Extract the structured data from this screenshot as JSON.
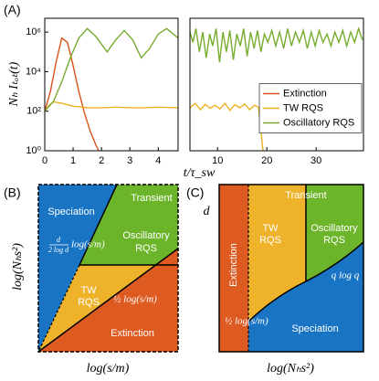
{
  "chart_data": [
    {
      "type": "line",
      "panel_label": "(A)",
      "y_label": "Nₕ Iₜₒₜ(t)",
      "x_label": "t/τ_sw",
      "log_y": true,
      "xlim": [
        0,
        4.7
      ],
      "xticks": [
        0,
        1,
        2,
        3,
        4
      ],
      "ylim": [
        1,
        5000000
      ],
      "yticks": [
        {
          "value": 1,
          "label": "10⁰"
        },
        {
          "value": 100,
          "label": "10²"
        },
        {
          "value": 10000,
          "label": "10⁴"
        },
        {
          "value": 1000000,
          "label": "10⁶"
        }
      ],
      "series": [
        {
          "color": "#d95319",
          "x": [
            0,
            0.2,
            0.4,
            0.6,
            0.8,
            1.0,
            1.2,
            1.4,
            1.6,
            1.8,
            1.9
          ],
          "values": [
            100,
            1000,
            30000,
            500000,
            300000,
            20000,
            1000,
            80,
            10,
            2,
            1
          ]
        },
        {
          "color": "#edb120",
          "x": [
            0,
            0.15,
            0.3,
            0.6,
            1.0,
            1.5,
            2.0,
            2.5,
            3.0,
            3.5,
            4.0,
            4.7
          ],
          "values": [
            100,
            200,
            300,
            250,
            180,
            150,
            150,
            160,
            150,
            150,
            160,
            150
          ]
        },
        {
          "color": "#77ac30",
          "x": [
            0,
            0.3,
            0.6,
            0.9,
            1.2,
            1.5,
            1.8,
            2.2,
            2.5,
            2.8,
            3.1,
            3.4,
            3.7,
            4.0,
            4.3,
            4.7
          ],
          "values": [
            100,
            300,
            3000,
            50000,
            500000,
            1500000,
            600000,
            100000,
            400000,
            1200000,
            400000,
            50000,
            150000,
            800000,
            1500000,
            500000
          ]
        }
      ]
    },
    {
      "type": "line",
      "log_y": true,
      "legend": "center-right",
      "xlim": [
        4.4,
        39.6
      ],
      "xticks": [
        10,
        20,
        30
      ],
      "ylim": [
        1,
        5000000
      ],
      "series": [
        {
          "name": "Extinction",
          "color": "#d95319",
          "x": [],
          "values": []
        },
        {
          "name": "TW RQS",
          "color": "#edb120",
          "x": [
            4.4,
            5.5,
            6.5,
            7.5,
            8.5,
            9.5,
            10.5,
            11.5,
            12.5,
            13.5,
            14.5,
            15.5,
            16.5,
            17.5,
            18.3,
            18.7,
            19.2
          ],
          "values": [
            150,
            250,
            120,
            220,
            140,
            200,
            130,
            250,
            110,
            210,
            150,
            230,
            120,
            200,
            160,
            20,
            1
          ]
        },
        {
          "name": "Oscillatory RQS",
          "color": "#77ac30",
          "x": [
            4.4,
            5,
            5.6,
            6.3,
            7,
            7.7,
            8.4,
            9,
            9.7,
            10.4,
            11.1,
            11.8,
            12.5,
            13.2,
            13.9,
            14.6,
            15.3,
            16,
            16.7,
            17.4,
            18.1,
            18.8,
            19.5,
            20.2,
            21,
            21.8,
            22.6,
            23.4,
            24.2,
            25,
            25.8,
            26.6,
            27.4,
            28.2,
            29,
            29.8,
            30.6,
            31.4,
            32.2,
            33,
            33.8,
            34.6,
            35.4,
            36.2,
            37,
            37.8,
            38.6,
            39.4
          ],
          "values": [
            1000000,
            300000,
            1500000,
            100000,
            1000000,
            50000,
            800000,
            200000,
            1500000,
            30000,
            1000000,
            100000,
            1200000,
            40000,
            800000,
            200000,
            1500000,
            60000,
            1000000,
            150000,
            1200000,
            100000,
            800000,
            300000,
            1200000,
            200000,
            1000000,
            150000,
            1500000,
            200000,
            1000000,
            300000,
            1200000,
            150000,
            1000000,
            200000,
            1200000,
            300000,
            800000,
            200000,
            1000000,
            300000,
            1200000,
            200000,
            1000000,
            300000,
            1500000,
            400000
          ]
        }
      ]
    }
  ],
  "panel_b": {
    "label": "(B)",
    "x_label": "log(s/m)",
    "y_label": "log(Nₕs²)",
    "regions": {
      "speciation": "Speciation",
      "transient": "Transient",
      "oscillatory": [
        "Oscillatory",
        "RQS"
      ],
      "tw": [
        "TW",
        "RQS"
      ],
      "extinction": "Extinction"
    },
    "boundary_labels": {
      "fraction_num": "d",
      "fraction_den": "2 log d",
      "fraction_text": "log(s/m)",
      "half": "½ log(s/m)"
    }
  },
  "panel_c": {
    "label": "(C)",
    "x_label": "log(Nₕs²)",
    "y_label": "d",
    "regions": {
      "extinction": "Extinction",
      "tw": [
        "TW",
        "RQS"
      ],
      "transient": "Transient",
      "oscillatory": [
        "Oscillatory",
        "RQS"
      ],
      "speciation": "Speciation"
    },
    "boundary_labels": {
      "half": "½ log(s/m)",
      "q": "q log q"
    }
  }
}
